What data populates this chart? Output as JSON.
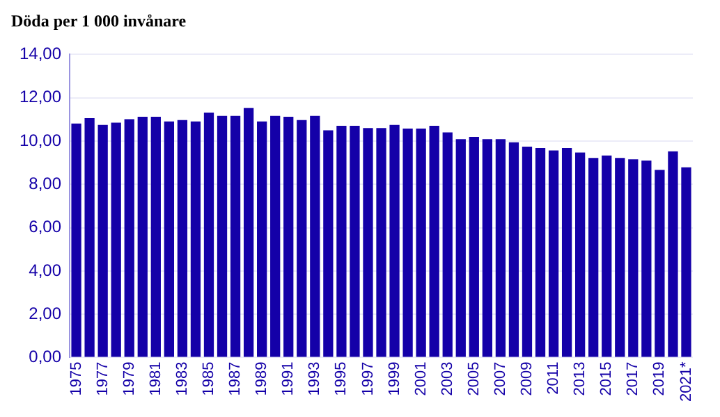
{
  "chart_data": {
    "type": "bar",
    "title": "Döda per 1 000 invånare",
    "categories": [
      "1975",
      null,
      "1977",
      null,
      "1979",
      null,
      "1981",
      null,
      "1983",
      null,
      "1985",
      null,
      "1987",
      null,
      "1989",
      null,
      "1991",
      null,
      "1993",
      null,
      "1995",
      null,
      "1997",
      null,
      "1999",
      null,
      "2001",
      null,
      "2003",
      null,
      "2005",
      null,
      "2007",
      null,
      "2009",
      null,
      "2011",
      null,
      "2013",
      null,
      "2015",
      null,
      "2017",
      null,
      "2019",
      null,
      "2021*"
    ],
    "values": [
      10.81,
      11.06,
      10.75,
      10.85,
      11.01,
      11.12,
      11.12,
      10.91,
      10.97,
      10.91,
      11.32,
      11.16,
      11.16,
      11.53,
      10.91,
      11.16,
      11.12,
      10.97,
      11.16,
      10.5,
      10.71,
      10.71,
      10.6,
      10.6,
      10.75,
      10.58,
      10.58,
      10.71,
      10.4,
      10.09,
      10.19,
      10.09,
      10.09,
      9.94,
      9.74,
      9.68,
      9.57,
      9.68,
      9.47,
      9.22,
      9.33,
      9.22,
      9.16,
      9.1,
      8.67,
      9.53,
      8.79
    ],
    "color": "#1400a8",
    "ylim": [
      0,
      14
    ],
    "yticks": [
      {
        "value": 0,
        "label": "0,00"
      },
      {
        "value": 2,
        "label": "2,00"
      },
      {
        "value": 4,
        "label": "4,00"
      },
      {
        "value": 6,
        "label": "6,00"
      },
      {
        "value": 8,
        "label": "8,00"
      },
      {
        "value": 10,
        "label": "10,00"
      },
      {
        "value": 12,
        "label": "12,00"
      },
      {
        "value": 14,
        "label": "14,00"
      }
    ],
    "grid": "y",
    "legend": false
  }
}
